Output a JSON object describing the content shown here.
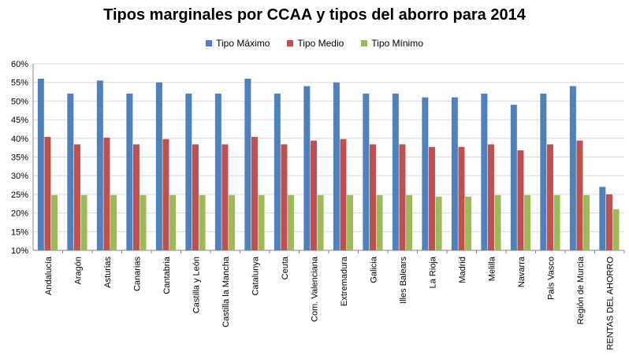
{
  "chart_data": {
    "type": "bar",
    "title": "Tipos marginales por CCAA y tipos del aborro para 2014",
    "xlabel": "",
    "ylabel": "",
    "ylim": [
      10,
      60
    ],
    "y_ticks": [
      "10%",
      "15%",
      "20%",
      "25%",
      "30%",
      "35%",
      "40%",
      "45%",
      "50%",
      "55%",
      "60%"
    ],
    "y_tick_values": [
      10,
      15,
      20,
      25,
      30,
      35,
      40,
      45,
      50,
      55,
      60
    ],
    "grid": true,
    "legend_position": "top",
    "categories": [
      "Andalucía",
      "Aragón",
      "Asturias",
      "Canarias",
      "Cantabria",
      "Castilla y León",
      "Castilla la Mancha",
      "Catalunya",
      "Ceuta",
      "Com. Valenciana",
      "Extremadura",
      "Galicia",
      "Illes Balears",
      "La Rioja",
      "Madrid",
      "Melilla",
      "Navarra",
      "País Vasco",
      "Región de Murcia",
      "RENTAS DEL AHORRO"
    ],
    "series": [
      {
        "name": "Tipo Máximo",
        "color": "#4F81BD",
        "values": [
          56,
          52,
          55.5,
          52,
          55,
          52,
          52,
          56,
          52,
          54,
          55,
          52,
          52,
          51,
          51,
          52,
          49,
          52,
          54,
          27
        ]
      },
      {
        "name": "Tipo Medio",
        "color": "#C0504D",
        "values": [
          40.4,
          38.4,
          40.2,
          38.4,
          39.8,
          38.4,
          38.4,
          40.4,
          38.4,
          39.4,
          39.8,
          38.4,
          38.4,
          37.7,
          37.7,
          38.4,
          36.8,
          38.4,
          39.4,
          25
        ]
      },
      {
        "name": "Tipo Mínimo",
        "color": "#9BBB59",
        "values": [
          24.8,
          24.8,
          24.8,
          24.8,
          24.8,
          24.8,
          24.8,
          24.8,
          24.8,
          24.8,
          24.8,
          24.8,
          24.8,
          24.4,
          24.4,
          24.8,
          24.8,
          24.8,
          24.8,
          21
        ]
      }
    ]
  }
}
